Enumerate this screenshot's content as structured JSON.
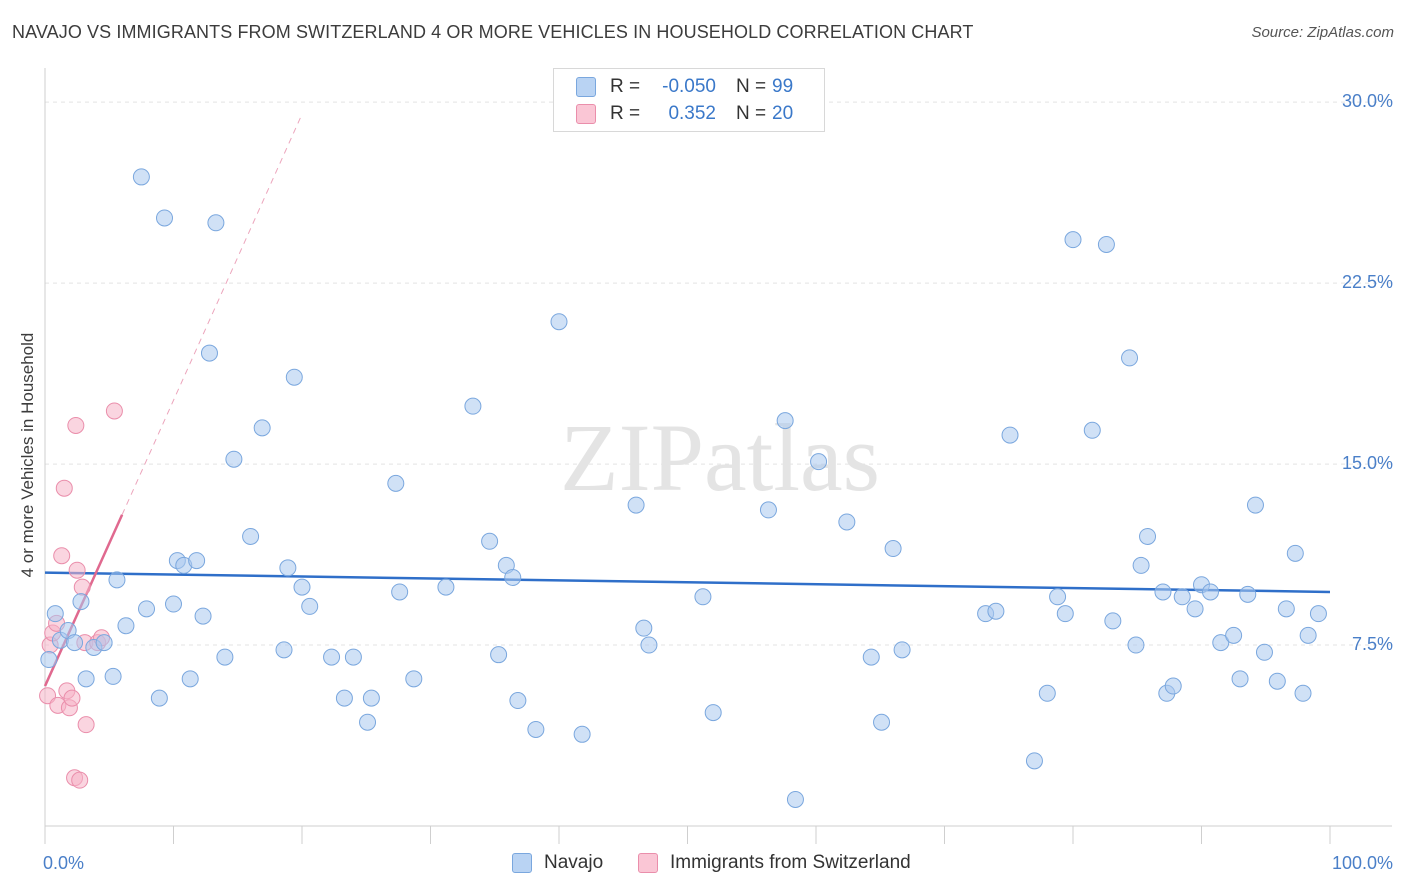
{
  "chart_data": {
    "type": "scatter",
    "title": "NAVAJO VS IMMIGRANTS FROM SWITZERLAND 4 OR MORE VEHICLES IN HOUSEHOLD CORRELATION CHART",
    "source": "Source: ZipAtlas.com",
    "ylabel": "4 or more Vehicles in Household",
    "xlabel": "",
    "xlim": [
      0,
      100
    ],
    "ylim": [
      0,
      31
    ],
    "y_ticks": [
      {
        "value": 7.5,
        "label": "7.5%"
      },
      {
        "value": 15.0,
        "label": "15.0%"
      },
      {
        "value": 22.5,
        "label": "22.5%"
      },
      {
        "value": 30.0,
        "label": "30.0%"
      }
    ],
    "x_tick_labels": {
      "min": "0.0%",
      "max": "100.0%"
    },
    "watermark": "ZIPatlas",
    "legend": {
      "rows": [
        {
          "r_label": "R =",
          "r_value": "-0.050",
          "n_label": "N =",
          "n_value": "99"
        },
        {
          "r_label": "R =",
          "r_value": "0.352",
          "n_label": "N =",
          "n_value": "20"
        }
      ]
    },
    "series": [
      {
        "name": "Navajo",
        "color": "#a9c8ee",
        "stroke": "#7aa7de",
        "line_color": "#2f6fc9",
        "trend": {
          "x": [
            0,
            100
          ],
          "y": [
            10.5,
            9.7
          ]
        },
        "points": [
          [
            0.3,
            6.9
          ],
          [
            0.8,
            8.8
          ],
          [
            1.2,
            7.7
          ],
          [
            1.8,
            8.1
          ],
          [
            2.3,
            7.6
          ],
          [
            2.8,
            9.3
          ],
          [
            3.2,
            6.1
          ],
          [
            3.8,
            7.4
          ],
          [
            4.6,
            7.6
          ],
          [
            5.3,
            6.2
          ],
          [
            5.6,
            10.2
          ],
          [
            6.3,
            8.3
          ],
          [
            7.5,
            26.9
          ],
          [
            7.9,
            9.0
          ],
          [
            8.9,
            5.3
          ],
          [
            9.3,
            25.2
          ],
          [
            10.0,
            9.2
          ],
          [
            10.3,
            11.0
          ],
          [
            10.8,
            10.8
          ],
          [
            11.3,
            6.1
          ],
          [
            11.8,
            11.0
          ],
          [
            12.3,
            8.7
          ],
          [
            12.8,
            19.6
          ],
          [
            13.3,
            25.0
          ],
          [
            14.0,
            7.0
          ],
          [
            14.7,
            15.2
          ],
          [
            16.0,
            12.0
          ],
          [
            16.9,
            16.5
          ],
          [
            18.6,
            7.3
          ],
          [
            18.9,
            10.7
          ],
          [
            19.4,
            18.6
          ],
          [
            20.0,
            9.9
          ],
          [
            20.6,
            9.1
          ],
          [
            22.3,
            7.0
          ],
          [
            23.3,
            5.3
          ],
          [
            24.0,
            7.0
          ],
          [
            25.1,
            4.3
          ],
          [
            25.4,
            5.3
          ],
          [
            27.3,
            14.2
          ],
          [
            27.6,
            9.7
          ],
          [
            28.7,
            6.1
          ],
          [
            31.2,
            9.9
          ],
          [
            33.3,
            17.4
          ],
          [
            34.6,
            11.8
          ],
          [
            35.3,
            7.1
          ],
          [
            35.9,
            10.8
          ],
          [
            36.4,
            10.3
          ],
          [
            36.8,
            5.2
          ],
          [
            38.2,
            4.0
          ],
          [
            40.0,
            20.9
          ],
          [
            41.8,
            3.8
          ],
          [
            46.0,
            13.3
          ],
          [
            46.6,
            8.2
          ],
          [
            47.0,
            7.5
          ],
          [
            51.2,
            9.5
          ],
          [
            52.0,
            4.7
          ],
          [
            56.3,
            13.1
          ],
          [
            57.6,
            16.8
          ],
          [
            58.4,
            1.1
          ],
          [
            60.2,
            15.1
          ],
          [
            62.4,
            12.6
          ],
          [
            64.3,
            7.0
          ],
          [
            65.1,
            4.3
          ],
          [
            66.0,
            11.5
          ],
          [
            66.7,
            7.3
          ],
          [
            73.2,
            8.8
          ],
          [
            74.0,
            8.9
          ],
          [
            75.1,
            16.2
          ],
          [
            77.0,
            2.7
          ],
          [
            78.0,
            5.5
          ],
          [
            78.8,
            9.5
          ],
          [
            79.4,
            8.8
          ],
          [
            80.0,
            24.3
          ],
          [
            81.5,
            16.4
          ],
          [
            82.6,
            24.1
          ],
          [
            83.1,
            8.5
          ],
          [
            84.4,
            19.4
          ],
          [
            84.9,
            7.5
          ],
          [
            85.3,
            10.8
          ],
          [
            85.8,
            12.0
          ],
          [
            87.0,
            9.7
          ],
          [
            87.3,
            5.5
          ],
          [
            87.8,
            5.8
          ],
          [
            88.5,
            9.5
          ],
          [
            89.5,
            9.0
          ],
          [
            90.0,
            10.0
          ],
          [
            90.7,
            9.7
          ],
          [
            91.5,
            7.6
          ],
          [
            92.5,
            7.9
          ],
          [
            93.0,
            6.1
          ],
          [
            93.6,
            9.6
          ],
          [
            94.2,
            13.3
          ],
          [
            94.9,
            7.2
          ],
          [
            95.9,
            6.0
          ],
          [
            96.6,
            9.0
          ],
          [
            97.3,
            11.3
          ],
          [
            97.9,
            5.5
          ],
          [
            98.3,
            7.9
          ],
          [
            99.1,
            8.8
          ]
        ]
      },
      {
        "name": "Immigrants from Switzerland",
        "color": "#f6b3c7",
        "stroke": "#ea8eab",
        "line_color": "#e0698f",
        "trend": {
          "x": [
            0,
            6
          ],
          "y": [
            5.8,
            12.9
          ]
        },
        "trend_ext": {
          "x": [
            6,
            20
          ],
          "y": [
            12.9,
            29.5
          ]
        },
        "points": [
          [
            0.2,
            5.4
          ],
          [
            0.4,
            7.5
          ],
          [
            0.6,
            8.0
          ],
          [
            0.9,
            8.4
          ],
          [
            1.0,
            5.0
          ],
          [
            1.3,
            11.2
          ],
          [
            1.5,
            14.0
          ],
          [
            1.7,
            5.6
          ],
          [
            1.9,
            4.9
          ],
          [
            2.1,
            5.3
          ],
          [
            2.3,
            2.0
          ],
          [
            2.4,
            16.6
          ],
          [
            2.5,
            10.6
          ],
          [
            2.7,
            1.9
          ],
          [
            2.9,
            9.9
          ],
          [
            3.1,
            7.6
          ],
          [
            3.2,
            4.2
          ],
          [
            4.1,
            7.6
          ],
          [
            4.4,
            7.8
          ],
          [
            5.4,
            17.2
          ]
        ]
      }
    ]
  }
}
